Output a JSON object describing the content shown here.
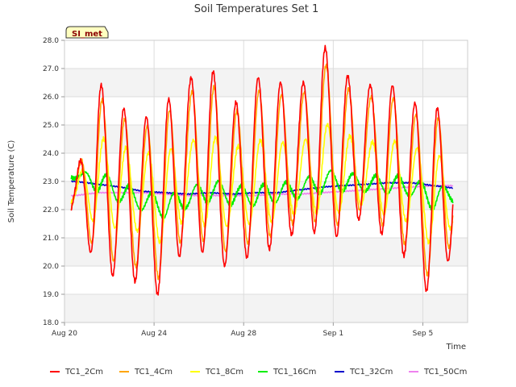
{
  "chart_data": {
    "type": "line",
    "title": "Soil Temperatures Set 1",
    "xlabel": "Time",
    "ylabel": "Soil Temperature (C)",
    "badge": "SI_met",
    "x_start": "2023-08-20",
    "x_range_days": [
      0,
      18
    ],
    "ylim": [
      18.0,
      28.0
    ],
    "y_ticks": [
      "18.0",
      "19.0",
      "20.0",
      "21.0",
      "22.0",
      "23.0",
      "24.0",
      "25.0",
      "26.0",
      "27.0",
      "28.0"
    ],
    "x_ticks": [
      {
        "label": "Aug 20",
        "day": 0
      },
      {
        "label": "Aug 24",
        "day": 4
      },
      {
        "label": "Aug 28",
        "day": 8
      },
      {
        "label": "Sep 1",
        "day": 12
      },
      {
        "label": "Sep 5",
        "day": 16
      }
    ],
    "grid": true,
    "legend_position": "bottom",
    "plot_background": "#f3f3f3",
    "daily_extremes": {
      "days": [
        0,
        1,
        2,
        3,
        4,
        5,
        6,
        7,
        8,
        9,
        10,
        11,
        12,
        13,
        14,
        15,
        16,
        17
      ],
      "TC1_2Cm_max": [
        22.5,
        26.4,
        25.5,
        25.0,
        25.8,
        26.6,
        27.1,
        25.6,
        26.7,
        26.5,
        26.2,
        27.9,
        26.8,
        26.4,
        26.5,
        25.8,
        25.7,
        25.3
      ],
      "TC1_2Cm_min": [
        21.1,
        19.7,
        19.4,
        19.2,
        18.8,
        21.2,
        20.1,
        19.9,
        20.5,
        20.6,
        21.3,
        21.1,
        21.0,
        22.0,
        20.7,
        20.2,
        18.6,
        21.1
      ]
    },
    "series": [
      {
        "name": "TC1_2Cm",
        "color": "#ff0000",
        "amp_scale": 1.0,
        "lag": 0.0,
        "mean": [
          22.4,
          23.2,
          22.6,
          22.3,
          22.3,
          23.9,
          23.6,
          22.8,
          23.6,
          23.6,
          23.8,
          24.5,
          23.9,
          24.2,
          23.6,
          23.0,
          22.1,
          23.2
        ]
      },
      {
        "name": "TC1_4Cm",
        "color": "#ffa500",
        "amp_scale": 0.85,
        "lag": 0.04,
        "mean": [
          22.5,
          23.2,
          22.7,
          22.4,
          22.4,
          23.8,
          23.6,
          22.9,
          23.6,
          23.6,
          23.8,
          24.4,
          23.9,
          24.1,
          23.6,
          23.0,
          22.3,
          23.1
        ]
      },
      {
        "name": "TC1_8Cm",
        "color": "#ffff00",
        "amp_scale": 0.48,
        "lag": 0.1,
        "mean": [
          22.6,
          23.0,
          22.8,
          22.6,
          22.4,
          23.1,
          23.0,
          22.8,
          23.0,
          23.0,
          23.1,
          23.5,
          23.3,
          23.3,
          23.1,
          22.9,
          22.3,
          22.6
        ]
      },
      {
        "name": "TC1_16Cm",
        "color": "#00ee00",
        "amp_scale": 0.12,
        "lag": 0.25,
        "mean": [
          23.2,
          23.0,
          22.6,
          22.3,
          22.1,
          22.4,
          22.7,
          22.5,
          22.5,
          22.6,
          22.7,
          23.0,
          23.0,
          22.9,
          22.9,
          22.8,
          22.4,
          22.6
        ]
      },
      {
        "name": "TC1_32Cm",
        "color": "#0000cc",
        "amp_scale": 0.0,
        "lag": 0.0,
        "mean": [
          23.0,
          22.9,
          22.8,
          22.65,
          22.6,
          22.55,
          22.6,
          22.55,
          22.6,
          22.6,
          22.7,
          22.8,
          22.85,
          22.9,
          22.95,
          22.95,
          22.85,
          22.75
        ]
      },
      {
        "name": "TC1_50Cm",
        "color": "#ee82ee",
        "amp_scale": 0.0,
        "lag": 0.0,
        "mean": [
          22.5,
          22.6,
          22.6,
          22.6,
          22.55,
          22.5,
          22.5,
          22.5,
          22.5,
          22.55,
          22.55,
          22.6,
          22.65,
          22.7,
          22.75,
          22.8,
          22.85,
          22.85
        ]
      }
    ]
  }
}
